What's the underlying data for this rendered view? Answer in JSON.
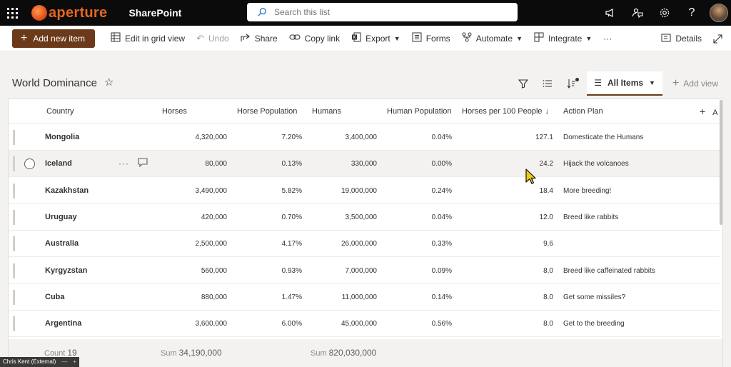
{
  "suitebar": {
    "brand": "aperture",
    "app_name": "SharePoint",
    "search_placeholder": "Search this list"
  },
  "command_bar": {
    "new_item": "Add new item",
    "edit_grid": "Edit in grid view",
    "undo": "Undo",
    "share": "Share",
    "copy_link": "Copy link",
    "export": "Export",
    "forms": "Forms",
    "automate": "Automate",
    "integrate": "Integrate",
    "more": "···",
    "details": "Details"
  },
  "list": {
    "title": "World Dominance",
    "view_name": "All Items",
    "add_view": "Add view"
  },
  "columns": [
    "Country",
    "Horses",
    "Horse Population",
    "Humans",
    "Human Population",
    "Horses per 100 People",
    "Action Plan"
  ],
  "add_column_label": "A",
  "rows": [
    {
      "country": "Mongolia",
      "horses": "4,320,000",
      "horse_pop": "7.20%",
      "humans": "3,400,000",
      "human_pop": "0.04%",
      "per100": "127.1",
      "plan": "Domesticate the Humans"
    },
    {
      "country": "Iceland",
      "horses": "80,000",
      "horse_pop": "0.13%",
      "humans": "330,000",
      "human_pop": "0.00%",
      "per100": "24.2",
      "plan": "Hijack the volcanoes"
    },
    {
      "country": "Kazakhstan",
      "horses": "3,490,000",
      "horse_pop": "5.82%",
      "humans": "19,000,000",
      "human_pop": "0.24%",
      "per100": "18.4",
      "plan": "More breeding!"
    },
    {
      "country": "Uruguay",
      "horses": "420,000",
      "horse_pop": "0.70%",
      "humans": "3,500,000",
      "human_pop": "0.04%",
      "per100": "12.0",
      "plan": "Breed like rabbits"
    },
    {
      "country": "Australia",
      "horses": "2,500,000",
      "horse_pop": "4.17%",
      "humans": "26,000,000",
      "human_pop": "0.33%",
      "per100": "9.6",
      "plan": ""
    },
    {
      "country": "Kyrgyzstan",
      "horses": "560,000",
      "horse_pop": "0.93%",
      "humans": "7,000,000",
      "human_pop": "0.09%",
      "per100": "8.0",
      "plan": "Breed like caffeinated rabbits"
    },
    {
      "country": "Cuba",
      "horses": "880,000",
      "horse_pop": "1.47%",
      "humans": "11,000,000",
      "human_pop": "0.14%",
      "per100": "8.0",
      "plan": "Get some missiles?"
    },
    {
      "country": "Argentina",
      "horses": "3,600,000",
      "horse_pop": "6.00%",
      "humans": "45,000,000",
      "human_pop": "0.56%",
      "per100": "8.0",
      "plan": "Get to the breeding"
    }
  ],
  "totals": {
    "count_label": "Count",
    "count_value": "19",
    "horses_label": "Sum",
    "horses_value": "34,190,000",
    "humans_label": "Sum",
    "humans_value": "820,030,000"
  },
  "status_tag": "Chris Kent (External)"
}
